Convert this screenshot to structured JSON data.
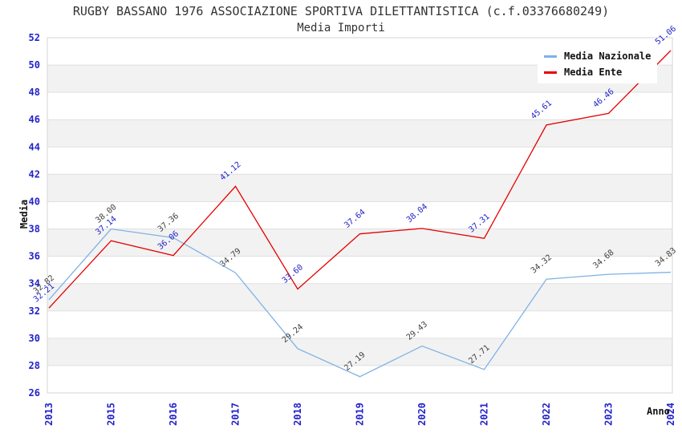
{
  "header": {
    "title": "RUGBY BASSANO 1976 ASSOCIAZIONE SPORTIVA DILETTANTISTICA (c.f.03376680249)",
    "subtitle": "Media Importi"
  },
  "chart_data": {
    "type": "line",
    "title": "RUGBY BASSANO 1976 ASSOCIAZIONE SPORTIVA DILETTANTISTICA (c.f.03376680249)",
    "subtitle": "Media Importi",
    "categories": [
      "2013",
      "2015",
      "2016",
      "2017",
      "2018",
      "2019",
      "2020",
      "2021",
      "2022",
      "2023",
      "2024"
    ],
    "series": [
      {
        "name": "Media Nazionale",
        "color": "#7FB2E5",
        "label_color": "#404040",
        "values": [
          32.82,
          38.0,
          37.36,
          34.79,
          29.24,
          27.19,
          29.43,
          27.71,
          34.32,
          34.68,
          34.83
        ]
      },
      {
        "name": "Media Ente",
        "color": "#E60000",
        "label_color": "#2222CC",
        "values": [
          32.21,
          37.14,
          36.06,
          41.12,
          33.6,
          37.64,
          38.04,
          37.31,
          45.61,
          46.46,
          51.06
        ]
      }
    ],
    "xlabel": "Anno",
    "ylabel": "Media",
    "ylim": [
      26,
      52
    ],
    "ytick_step": 2,
    "yticks": [
      26,
      28,
      30,
      32,
      34,
      36,
      38,
      40,
      42,
      44,
      46,
      48,
      50,
      52
    ],
    "grid": "horizontal",
    "band_fill": "alternating",
    "legend_position": "top-right",
    "colors": {
      "axis_labels": "#2222CC",
      "title": "#333333",
      "band": "#F2F2F2",
      "gridline": "#E0E0E0",
      "plot_border": "#D4D4D4",
      "background": "#FFFFFF"
    }
  }
}
